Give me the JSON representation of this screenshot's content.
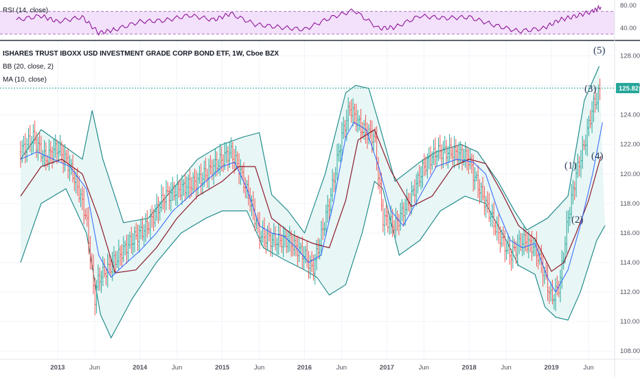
{
  "header": {
    "symbol_title": "ISHARES TRUST IBOXX USD INVESTMENT GRADE CORP BOND ETF, 1W, Cboe BZX",
    "indicators": [
      "BB (20, close, 2)",
      "MA (10, close)"
    ],
    "rsi_label": "RSI (14, close)"
  },
  "colors": {
    "rsi_line": "#8e1599",
    "rsi_band_fill": "#f3e0fb",
    "bb_line": "#138484",
    "bb_fill": "#e8f6f5",
    "ma_line": "#2962ff",
    "bb_basis": "#8b1a2b",
    "up_bar": "#26a69a",
    "down_bar": "#ef5350",
    "last_price_bg": "#26a69a"
  },
  "last_price": "125.82",
  "wave_labels": [
    "(1)",
    "(2)",
    "(3)",
    "(4)",
    "(5)"
  ],
  "chart_data": [
    {
      "type": "line",
      "name": "RSI (14, close)",
      "ylim": [
        20,
        90
      ],
      "yticks": [
        "80.00",
        "40.00"
      ],
      "bands": [
        70,
        30
      ],
      "x": [
        2012.5,
        2012.8,
        2013.0,
        2013.3,
        2013.5,
        2013.7,
        2014.0,
        2014.3,
        2014.6,
        2014.9,
        2015.1,
        2015.4,
        2015.7,
        2016.0,
        2016.3,
        2016.6,
        2016.9,
        2017.1,
        2017.4,
        2017.7,
        2018.0,
        2018.3,
        2018.6,
        2018.9,
        2019.1,
        2019.3,
        2019.5,
        2019.6
      ],
      "values": [
        55,
        62,
        52,
        60,
        32,
        38,
        52,
        54,
        63,
        55,
        66,
        47,
        42,
        38,
        58,
        72,
        40,
        42,
        62,
        58,
        60,
        46,
        35,
        40,
        55,
        62,
        70,
        78
      ]
    },
    {
      "type": "line",
      "name": "ISHARES TRUST IBOXX USD INVESTMENT GRADE CORP BOND ETF, 1W, Cboe BZX",
      "ylim": [
        107.5,
        129
      ],
      "yticks": [
        "128.00",
        "126.00",
        "124.00",
        "122.00",
        "120.00",
        "118.00",
        "116.00",
        "114.00",
        "112.00",
        "110.00",
        "108.00"
      ],
      "xticks": [
        {
          "label": "2013",
          "x": 2013.0
        },
        {
          "label": "Jun",
          "x": 2013.45
        },
        {
          "label": "2014",
          "x": 2014.0
        },
        {
          "label": "Jun",
          "x": 2014.45
        },
        {
          "label": "2015",
          "x": 2015.0
        },
        {
          "label": "Jun",
          "x": 2015.45
        },
        {
          "label": "2016",
          "x": 2016.0
        },
        {
          "label": "Jun",
          "x": 2016.45
        },
        {
          "label": "2017",
          "x": 2017.0
        },
        {
          "label": "Jun",
          "x": 2017.45
        },
        {
          "label": "2018",
          "x": 2018.0
        },
        {
          "label": "Jun",
          "x": 2018.45
        },
        {
          "label": "2019",
          "x": 2019.0
        },
        {
          "label": "Jun",
          "x": 2019.45
        }
      ],
      "series": [
        {
          "key": "price",
          "x": [
            2012.55,
            2012.7,
            2012.85,
            2013.0,
            2013.15,
            2013.25,
            2013.35,
            2013.45,
            2013.5,
            2013.6,
            2013.75,
            2013.9,
            2014.1,
            2014.3,
            2014.5,
            2014.7,
            2014.9,
            2015.1,
            2015.2,
            2015.35,
            2015.45,
            2015.6,
            2015.8,
            2016.0,
            2016.1,
            2016.3,
            2016.45,
            2016.55,
            2016.7,
            2016.85,
            2016.95,
            2017.1,
            2017.3,
            2017.45,
            2017.6,
            2017.8,
            2018.0,
            2018.05,
            2018.2,
            2018.35,
            2018.5,
            2018.65,
            2018.8,
            2018.9,
            2019.0,
            2019.1,
            2019.2,
            2019.3,
            2019.4,
            2019.5,
            2019.6
          ],
          "values": [
            121.5,
            122.5,
            121,
            121.8,
            120.5,
            119,
            117,
            111.5,
            113,
            113.5,
            114.5,
            115.5,
            116.5,
            118.5,
            119,
            119.5,
            120.5,
            121.5,
            120.5,
            118,
            116,
            115.5,
            115.5,
            114.5,
            113.5,
            118,
            122.5,
            124.5,
            123,
            122.5,
            117,
            116.5,
            118.5,
            120.5,
            121.5,
            121.5,
            121,
            120,
            118,
            116,
            114.5,
            115.5,
            115,
            113.5,
            111.5,
            112.5,
            117,
            120,
            122,
            124.5,
            125.8
          ]
        },
        {
          "key": "bb_upper",
          "x": [
            2012.55,
            2012.8,
            2013.05,
            2013.3,
            2013.42,
            2013.55,
            2013.8,
            2014.1,
            2014.4,
            2014.7,
            2015.0,
            2015.25,
            2015.45,
            2015.6,
            2015.8,
            2016.0,
            2016.25,
            2016.5,
            2016.62,
            2016.78,
            2016.9,
            2017.1,
            2017.4,
            2017.6,
            2017.9,
            2018.1,
            2018.35,
            2018.55,
            2018.7,
            2018.95,
            2019.2,
            2019.4,
            2019.58
          ],
          "values": [
            121,
            123,
            122,
            121,
            124.3,
            121,
            116.7,
            117,
            119,
            121,
            122,
            122.5,
            122.8,
            118.6,
            117.5,
            116,
            120,
            125.5,
            126,
            125.8,
            123.5,
            119.5,
            120.8,
            121.5,
            122,
            121.5,
            119.5,
            117.5,
            116.2,
            117,
            118.5,
            125,
            127.3
          ]
        },
        {
          "key": "bb_lower",
          "x": [
            2012.55,
            2012.8,
            2013.1,
            2013.35,
            2013.52,
            2013.65,
            2013.9,
            2014.2,
            2014.5,
            2014.8,
            2015.0,
            2015.3,
            2015.5,
            2015.75,
            2016.0,
            2016.15,
            2016.3,
            2016.5,
            2016.7,
            2016.85,
            2016.95,
            2017.15,
            2017.4,
            2017.65,
            2017.95,
            2018.2,
            2018.45,
            2018.6,
            2018.8,
            2018.92,
            2019.05,
            2019.2,
            2019.35,
            2019.55,
            2019.65
          ],
          "values": [
            114,
            118,
            119,
            116,
            110.5,
            108.9,
            111.5,
            114,
            116,
            117,
            117.5,
            117.5,
            115,
            114.2,
            113.5,
            113,
            111.8,
            112.5,
            116,
            119.5,
            119,
            114.5,
            115.5,
            117.5,
            118.5,
            118,
            115.5,
            113.8,
            113.2,
            111,
            110.3,
            110.1,
            112,
            115.5,
            116.5
          ]
        },
        {
          "key": "ma",
          "x": [
            2012.55,
            2012.75,
            2012.95,
            2013.15,
            2013.35,
            2013.5,
            2013.65,
            2013.8,
            2014.0,
            2014.2,
            2014.4,
            2014.6,
            2014.8,
            2015.0,
            2015.15,
            2015.3,
            2015.45,
            2015.6,
            2015.75,
            2015.9,
            2016.05,
            2016.2,
            2016.35,
            2016.5,
            2016.6,
            2016.75,
            2016.9,
            2017.05,
            2017.2,
            2017.4,
            2017.6,
            2017.85,
            2018.05,
            2018.2,
            2018.35,
            2018.5,
            2018.65,
            2018.8,
            2018.95,
            2019.05,
            2019.2,
            2019.35,
            2019.5,
            2019.62
          ],
          "values": [
            121,
            121.5,
            121,
            120.5,
            119,
            114.5,
            113,
            113.8,
            114.8,
            116,
            117.5,
            118.5,
            119.5,
            120.5,
            120.8,
            119,
            116.5,
            116,
            115.8,
            115,
            114,
            114.5,
            118,
            122.5,
            123.5,
            123,
            120.5,
            117.5,
            116.5,
            118.5,
            120.5,
            121,
            120.8,
            120,
            117.5,
            115.5,
            115,
            115.3,
            113,
            112,
            113.5,
            116.5,
            120,
            123.5
          ]
        },
        {
          "key": "bb_basis",
          "x": [
            2012.55,
            2012.8,
            2013.05,
            2013.3,
            2013.5,
            2013.7,
            2013.95,
            2014.2,
            2014.45,
            2014.7,
            2015.0,
            2015.2,
            2015.4,
            2015.6,
            2015.85,
            2016.1,
            2016.3,
            2016.5,
            2016.65,
            2016.85,
            2017.05,
            2017.3,
            2017.55,
            2017.8,
            2018.0,
            2018.2,
            2018.4,
            2018.6,
            2018.8,
            2019.0,
            2019.15,
            2019.3,
            2019.45,
            2019.6
          ],
          "values": [
            118.5,
            120.5,
            121,
            120,
            117,
            113.3,
            113.5,
            115,
            117,
            118.5,
            119.5,
            120.5,
            120.5,
            117,
            115.9,
            115.3,
            115,
            118.2,
            122.3,
            123,
            120.2,
            117.8,
            118.5,
            120.5,
            121,
            120.7,
            118.7,
            116.5,
            115.6,
            113.4,
            114,
            116,
            118.2,
            121.2
          ]
        }
      ]
    }
  ]
}
